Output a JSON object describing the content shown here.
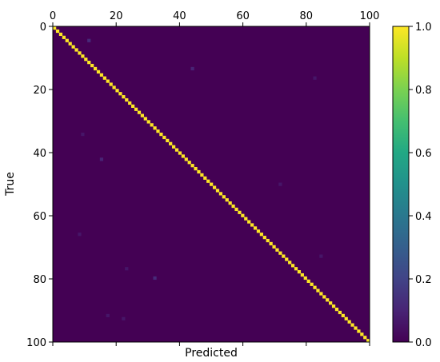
{
  "chart_data": {
    "type": "heatmap",
    "title": "",
    "xlabel": "Predicted",
    "ylabel": "True",
    "xlim": [
      0,
      100
    ],
    "ylim": [
      100,
      0
    ],
    "x_ticks": [
      0,
      20,
      40,
      60,
      80,
      100
    ],
    "y_ticks": [
      0,
      20,
      40,
      60,
      80,
      100
    ],
    "x_tick_position": "top",
    "grid": false,
    "colormap": "viridis",
    "matrix_size": 101,
    "diagonal_value": 1.0,
    "off_diagonal_value": 0.0,
    "off_diagonal_scattered": [
      {
        "true": 4,
        "predicted": 11,
        "value": 0.12
      },
      {
        "true": 13,
        "predicted": 44,
        "value": 0.1
      },
      {
        "true": 16,
        "predicted": 83,
        "value": 0.06
      },
      {
        "true": 34,
        "predicted": 9,
        "value": 0.06
      },
      {
        "true": 42,
        "predicted": 15,
        "value": 0.1
      },
      {
        "true": 50,
        "predicted": 72,
        "value": 0.06
      },
      {
        "true": 66,
        "predicted": 8,
        "value": 0.06
      },
      {
        "true": 73,
        "predicted": 85,
        "value": 0.06
      },
      {
        "true": 77,
        "predicted": 23,
        "value": 0.06
      },
      {
        "true": 80,
        "predicted": 32,
        "value": 0.12
      },
      {
        "true": 92,
        "predicted": 17,
        "value": 0.06
      },
      {
        "true": 93,
        "predicted": 22,
        "value": 0.06
      }
    ],
    "colorbar": {
      "min": 0.0,
      "max": 1.0,
      "ticks": [
        "0.0",
        "0.2",
        "0.4",
        "0.6",
        "0.8",
        "1.0"
      ]
    }
  }
}
